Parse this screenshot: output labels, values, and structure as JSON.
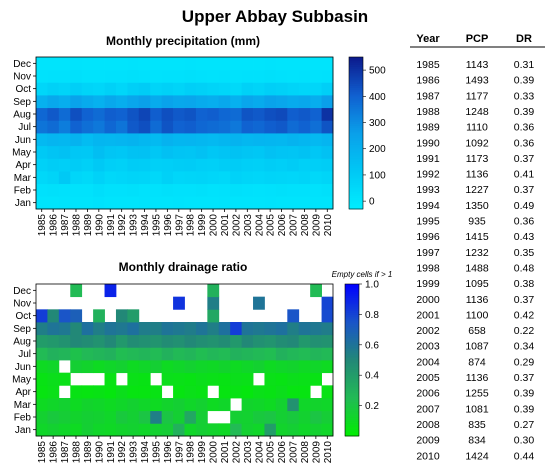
{
  "title": "Upper Abbay Subbasin",
  "chart_data": [
    {
      "type": "heatmap",
      "title": "Monthly precipitation (mm)",
      "x": [
        1985,
        1986,
        1987,
        1988,
        1989,
        1990,
        1991,
        1992,
        1993,
        1994,
        1995,
        1996,
        1997,
        1998,
        1999,
        2000,
        2001,
        2002,
        2003,
        2004,
        2005,
        2006,
        2007,
        2008,
        2009,
        2010
      ],
      "y": [
        "Jan",
        "Feb",
        "Mar",
        "Apr",
        "May",
        "Jun",
        "Jul",
        "Aug",
        "Sep",
        "Oct",
        "Nov",
        "Dec"
      ],
      "values": [
        [
          10,
          8,
          12,
          9,
          10,
          14,
          8,
          9,
          10,
          11,
          9,
          10,
          12,
          10,
          9,
          10,
          11,
          8,
          9,
          10,
          12,
          9,
          10,
          8,
          9,
          10
        ],
        [
          18,
          22,
          20,
          14,
          16,
          30,
          18,
          20,
          22,
          16,
          14,
          25,
          20,
          18,
          22,
          16,
          20,
          24,
          18,
          16,
          20,
          22,
          18,
          20,
          16,
          24
        ],
        [
          55,
          70,
          110,
          60,
          50,
          75,
          55,
          60,
          70,
          65,
          55,
          80,
          60,
          65,
          70,
          60,
          55,
          75,
          65,
          60,
          70,
          65,
          60,
          70,
          55,
          65
        ],
        [
          80,
          95,
          90,
          100,
          85,
          110,
          90,
          80,
          100,
          95,
          85,
          90,
          95,
          100,
          90,
          85,
          95,
          100,
          90,
          85,
          95,
          90,
          100,
          85,
          90,
          95
        ],
        [
          110,
          130,
          140,
          120,
          115,
          150,
          125,
          120,
          135,
          140,
          120,
          145,
          130,
          125,
          140,
          120,
          130,
          135,
          125,
          120,
          140,
          130,
          125,
          135,
          120,
          140
        ],
        [
          170,
          185,
          175,
          190,
          160,
          180,
          175,
          185,
          190,
          175,
          165,
          195,
          180,
          185,
          175,
          170,
          180,
          190,
          175,
          185,
          180,
          175,
          190,
          180,
          170,
          185
        ],
        [
          360,
          380,
          340,
          400,
          370,
          350,
          390,
          360,
          420,
          440,
          380,
          430,
          400,
          410,
          390,
          380,
          370,
          350,
          400,
          390,
          410,
          420,
          380,
          400,
          370,
          430
        ],
        [
          390,
          420,
          380,
          440,
          400,
          380,
          410,
          400,
          430,
          460,
          410,
          440,
          420,
          430,
          400,
          410,
          390,
          380,
          430,
          420,
          440,
          450,
          410,
          420,
          400,
          500
        ],
        [
          200,
          230,
          210,
          250,
          220,
          200,
          230,
          210,
          240,
          260,
          220,
          250,
          230,
          240,
          220,
          210,
          230,
          200,
          240,
          220,
          250,
          240,
          220,
          230,
          210,
          260
        ],
        [
          60,
          80,
          70,
          90,
          70,
          60,
          80,
          60,
          90,
          100,
          70,
          80,
          70,
          90,
          80,
          70,
          60,
          50,
          80,
          70,
          90,
          80,
          70,
          60,
          60,
          90
        ],
        [
          15,
          20,
          18,
          22,
          16,
          14,
          20,
          18,
          22,
          20,
          16,
          18,
          20,
          22,
          18,
          16,
          20,
          14,
          18,
          20,
          22,
          18,
          16,
          20,
          14,
          18
        ],
        [
          8,
          10,
          9,
          12,
          8,
          7,
          10,
          9,
          11,
          10,
          8,
          9,
          10,
          12,
          9,
          8,
          10,
          7,
          9,
          10,
          11,
          9,
          8,
          10,
          7,
          9
        ]
      ],
      "colorbar_ticks": [
        0,
        100,
        200,
        300,
        400,
        500
      ],
      "vmin": -30,
      "vmax": 550,
      "colors": {
        "low": "#00eeff",
        "mid1": "#00c8f5",
        "mid2": "#0aa0ea",
        "mid3": "#1060d0",
        "high": "#0c1a8c"
      }
    },
    {
      "type": "heatmap",
      "title": "Monthly drainage ratio",
      "note": "Empty cells if > 1",
      "x": [
        1985,
        1986,
        1987,
        1988,
        1989,
        1990,
        1991,
        1992,
        1993,
        1994,
        1995,
        1996,
        1997,
        1998,
        1999,
        2000,
        2001,
        2002,
        2003,
        2004,
        2005,
        2006,
        2007,
        2008,
        2009,
        2010
      ],
      "y": [
        "Jan",
        "Feb",
        "Mar",
        "Apr",
        "May",
        "Jun",
        "Jul",
        "Aug",
        "Sep",
        "Oct",
        "Nov",
        "Dec"
      ],
      "values": [
        [
          0.12,
          0.14,
          0.12,
          0.1,
          0.15,
          0.12,
          0.11,
          0.13,
          0.14,
          0.12,
          0.14,
          0.16,
          0.3,
          0.12,
          0.15,
          0.13,
          0.11,
          0.25,
          0.14,
          0.12,
          0.4,
          0.13,
          0.15,
          0.12,
          0.14,
          0.12
        ],
        [
          0.14,
          0.18,
          0.16,
          0.13,
          0.15,
          0.14,
          0.12,
          0.18,
          0.15,
          0.2,
          0.55,
          0.2,
          0.15,
          0.35,
          0.16,
          null,
          null,
          0.15,
          0.14,
          0.18,
          0.2,
          0.15,
          0.18,
          0.14,
          0.2,
          0.16
        ],
        [
          0.1,
          0.12,
          0.14,
          0.1,
          0.13,
          0.12,
          0.1,
          0.12,
          0.14,
          0.12,
          0.1,
          0.13,
          0.15,
          0.12,
          0.14,
          0.1,
          0.12,
          null,
          0.13,
          0.12,
          0.1,
          0.14,
          0.45,
          0.12,
          0.13,
          0.12
        ],
        [
          0.05,
          0.07,
          null,
          0.06,
          0.05,
          0.06,
          0.04,
          0.08,
          0.05,
          0.05,
          0.06,
          null,
          0.05,
          0.07,
          0.06,
          null,
          0.05,
          0.06,
          0.04,
          0.07,
          0.06,
          0.08,
          0.05,
          0.05,
          null,
          0.06
        ],
        [
          0.06,
          0.08,
          0.07,
          null,
          null,
          null,
          0.06,
          null,
          0.07,
          0.06,
          null,
          0.08,
          0.07,
          0.06,
          0.08,
          0.07,
          0.06,
          0.08,
          0.07,
          null,
          0.07,
          0.06,
          0.08,
          0.07,
          0.06,
          null
        ],
        [
          0.1,
          0.12,
          null,
          0.15,
          0.13,
          0.1,
          0.12,
          0.14,
          0.1,
          0.12,
          0.15,
          0.1,
          0.12,
          0.14,
          0.12,
          0.11,
          0.13,
          0.1,
          0.12,
          0.14,
          0.1,
          0.12,
          0.13,
          0.11,
          0.12,
          0.1
        ],
        [
          0.25,
          0.3,
          0.28,
          0.22,
          0.26,
          0.28,
          0.3,
          0.24,
          0.26,
          0.28,
          0.25,
          0.3,
          0.26,
          0.28,
          0.24,
          0.27,
          0.25,
          0.3,
          0.28,
          0.26,
          0.24,
          0.3,
          0.27,
          0.25,
          0.28,
          0.26
        ],
        [
          0.4,
          0.42,
          0.45,
          0.5,
          0.48,
          0.45,
          0.5,
          0.42,
          0.48,
          0.46,
          0.44,
          0.48,
          0.46,
          0.5,
          0.47,
          0.45,
          0.48,
          0.42,
          0.5,
          0.46,
          0.44,
          0.48,
          0.5,
          0.42,
          0.46,
          0.45
        ],
        [
          0.55,
          0.6,
          0.58,
          0.5,
          0.62,
          0.55,
          0.6,
          0.58,
          0.62,
          0.56,
          0.55,
          0.6,
          0.58,
          0.56,
          0.6,
          0.55,
          0.62,
          0.82,
          0.6,
          0.58,
          0.6,
          0.62,
          0.55,
          0.6,
          0.58,
          0.56
        ],
        [
          0.82,
          0.5,
          0.75,
          0.7,
          null,
          0.3,
          null,
          0.5,
          0.4,
          null,
          null,
          null,
          null,
          null,
          null,
          0.35,
          null,
          null,
          null,
          null,
          null,
          null,
          0.75,
          null,
          null,
          0.78
        ],
        [
          null,
          null,
          null,
          null,
          null,
          null,
          null,
          null,
          null,
          null,
          null,
          null,
          0.85,
          null,
          null,
          0.55,
          null,
          null,
          null,
          0.6,
          null,
          null,
          null,
          null,
          null,
          0.8
        ],
        [
          null,
          null,
          null,
          0.25,
          null,
          null,
          0.9,
          null,
          null,
          null,
          null,
          null,
          null,
          null,
          null,
          0.3,
          null,
          null,
          null,
          null,
          null,
          null,
          null,
          null,
          0.25,
          null
        ]
      ],
      "colorbar_ticks": [
        0.2,
        0.4,
        0.6,
        0.8,
        1.0
      ],
      "vmin": 0,
      "vmax": 1.0,
      "colors": {
        "low": "#00ee00",
        "mid1": "#22bb55",
        "mid2": "#228877",
        "mid3": "#1a55c8",
        "high": "#0000ff"
      }
    },
    {
      "type": "table",
      "columns": [
        "Year",
        "PCP",
        "DR"
      ],
      "rows": [
        [
          "1985",
          "1143",
          "0.31"
        ],
        [
          "1986",
          "1493",
          "0.39"
        ],
        [
          "1987",
          "1177",
          "0.33"
        ],
        [
          "1988",
          "1248",
          "0.39"
        ],
        [
          "1989",
          "1110",
          "0.36"
        ],
        [
          "1990",
          "1092",
          "0.36"
        ],
        [
          "1991",
          "1173",
          "0.37"
        ],
        [
          "1992",
          "1136",
          "0.41"
        ],
        [
          "1993",
          "1227",
          "0.37"
        ],
        [
          "1994",
          "1350",
          "0.49"
        ],
        [
          "1995",
          "935",
          "0.36"
        ],
        [
          "1996",
          "1415",
          "0.43"
        ],
        [
          "1997",
          "1232",
          "0.35"
        ],
        [
          "1998",
          "1488",
          "0.48"
        ],
        [
          "1999",
          "1095",
          "0.38"
        ],
        [
          "2000",
          "1136",
          "0.37"
        ],
        [
          "2001",
          "1100",
          "0.42"
        ],
        [
          "2002",
          "658",
          "0.22"
        ],
        [
          "2003",
          "1087",
          "0.34"
        ],
        [
          "2004",
          "874",
          "0.29"
        ],
        [
          "2005",
          "1136",
          "0.37"
        ],
        [
          "2006",
          "1255",
          "0.39"
        ],
        [
          "2007",
          "1081",
          "0.39"
        ],
        [
          "2008",
          "835",
          "0.27"
        ],
        [
          "2009",
          "834",
          "0.30"
        ],
        [
          "2010",
          "1424",
          "0.44"
        ]
      ]
    }
  ]
}
